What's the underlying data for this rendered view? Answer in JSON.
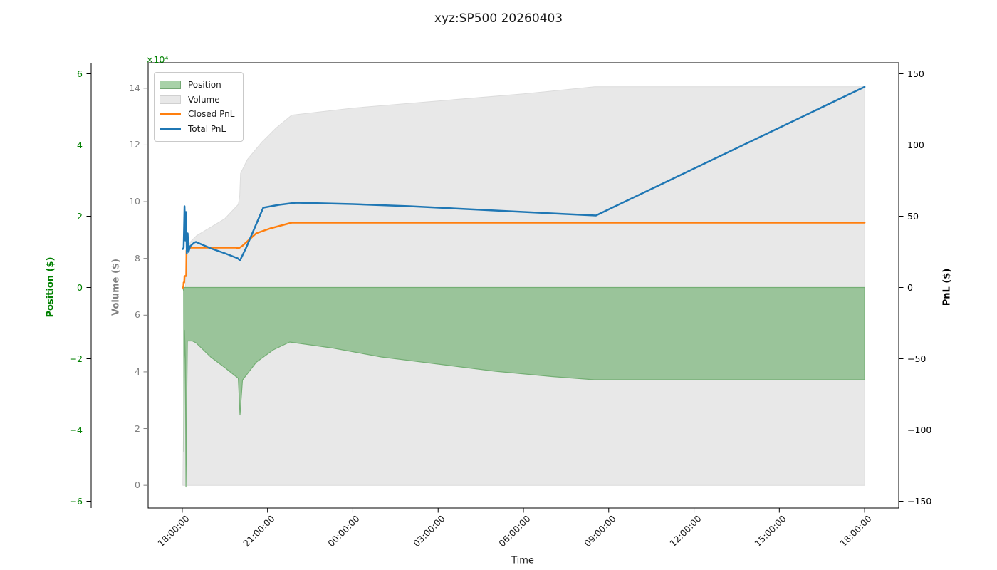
{
  "title": "xyz:SP500 20260403",
  "legend": {
    "items": [
      {
        "label": "Position",
        "type": "patch",
        "fill": "#a9d2a9",
        "edge": "#74a874"
      },
      {
        "label": "Volume",
        "type": "patch",
        "fill": "#e8e8e8",
        "edge": "#d0d0d0"
      },
      {
        "label": "Closed PnL",
        "type": "line",
        "color": "#ff7f0e"
      },
      {
        "label": "Total PnL",
        "type": "line",
        "color": "#1f77b4"
      }
    ]
  },
  "axes": {
    "x": {
      "label": "Time",
      "lim": [
        -1.2,
        25.2
      ],
      "ticks": [
        {
          "h": 0,
          "label": "18:00:00"
        },
        {
          "h": 3,
          "label": "21:00:00"
        },
        {
          "h": 6,
          "label": "00:00:00"
        },
        {
          "h": 9,
          "label": "03:00:00"
        },
        {
          "h": 12,
          "label": "06:00:00"
        },
        {
          "h": 15,
          "label": "09:00:00"
        },
        {
          "h": 18,
          "label": "12:00:00"
        },
        {
          "h": 21,
          "label": "15:00:00"
        },
        {
          "h": 24,
          "label": "18:00:00"
        }
      ]
    },
    "position": {
      "label": "Position ($)",
      "color": "#008000",
      "lim": [
        -6.19,
        6.31
      ],
      "ticks": [
        {
          "v": 6,
          "label": "6"
        },
        {
          "v": 4,
          "label": "4"
        },
        {
          "v": 2,
          "label": "2"
        },
        {
          "v": 0,
          "label": "0"
        },
        {
          "v": -2,
          "label": "−2"
        },
        {
          "v": -4,
          "label": "−4"
        },
        {
          "v": -6,
          "label": "−6"
        }
      ]
    },
    "volume": {
      "label": "Volume ($)",
      "color": "#808080",
      "lim": [
        -0.8,
        14.9
      ],
      "offset_text": "×10⁴",
      "ticks": [
        {
          "v": 14,
          "label": "14"
        },
        {
          "v": 12,
          "label": "12"
        },
        {
          "v": 10,
          "label": "10"
        },
        {
          "v": 8,
          "label": "8"
        },
        {
          "v": 6,
          "label": "6"
        },
        {
          "v": 4,
          "label": "4"
        },
        {
          "v": 2,
          "label": "2"
        },
        {
          "v": 0,
          "label": "0"
        }
      ]
    },
    "pnl": {
      "label": "PnL ($)",
      "color": "#000000",
      "lim": [
        -154.75,
        157.75
      ],
      "ticks": [
        {
          "v": 150,
          "label": "150"
        },
        {
          "v": 100,
          "label": "100"
        },
        {
          "v": 50,
          "label": "50"
        },
        {
          "v": 0,
          "label": "0"
        },
        {
          "v": -50,
          "label": "−50"
        },
        {
          "v": -100,
          "label": "−100"
        },
        {
          "v": -150,
          "label": "−150"
        }
      ]
    }
  },
  "chart_data": {
    "type": "mixed",
    "x_unit": "hours after 18:00 on 2026-04-03",
    "xlim": [
      -1.2,
      25.2
    ],
    "series": [
      {
        "name": "Volume",
        "kind": "area",
        "axis": "volume",
        "baseline": 0,
        "fill": "#e8e8e8",
        "edge": "#dcdcdc",
        "edge_width": 1,
        "points": [
          [
            0.02,
            0
          ],
          [
            0.05,
            2.5
          ],
          [
            0.08,
            5.0
          ],
          [
            0.12,
            7.3
          ],
          [
            0.15,
            8.3
          ],
          [
            0.3,
            8.6
          ],
          [
            0.5,
            8.8
          ],
          [
            1.0,
            9.1
          ],
          [
            1.5,
            9.4
          ],
          [
            1.97,
            9.9
          ],
          [
            2.02,
            10.2
          ],
          [
            2.05,
            11.0
          ],
          [
            2.3,
            11.5
          ],
          [
            2.8,
            12.1
          ],
          [
            3.3,
            12.6
          ],
          [
            3.85,
            13.05
          ],
          [
            6.0,
            13.3
          ],
          [
            9.0,
            13.55
          ],
          [
            12.0,
            13.8
          ],
          [
            14.5,
            14.05
          ],
          [
            24,
            14.05
          ]
        ]
      },
      {
        "name": "Position",
        "kind": "area",
        "axis": "position",
        "baseline": 0,
        "fill": "#9ac49a",
        "edge": "#74ae74",
        "edge_width": 1.2,
        "points": [
          [
            0.02,
            0
          ],
          [
            0.05,
            -0.1
          ],
          [
            0.06,
            -4.6
          ],
          [
            0.08,
            -1.2
          ],
          [
            0.11,
            -2.0
          ],
          [
            0.13,
            -5.6
          ],
          [
            0.16,
            -3.0
          ],
          [
            0.18,
            -1.5
          ],
          [
            0.35,
            -1.5
          ],
          [
            0.48,
            -1.55
          ],
          [
            1.0,
            -1.95
          ],
          [
            1.5,
            -2.25
          ],
          [
            1.97,
            -2.55
          ],
          [
            2.03,
            -3.58
          ],
          [
            2.12,
            -2.6
          ],
          [
            2.6,
            -2.1
          ],
          [
            3.2,
            -1.75
          ],
          [
            3.78,
            -1.53
          ],
          [
            5.3,
            -1.7
          ],
          [
            7.0,
            -1.95
          ],
          [
            9.0,
            -2.15
          ],
          [
            11.0,
            -2.35
          ],
          [
            13.0,
            -2.5
          ],
          [
            14.5,
            -2.59
          ],
          [
            24,
            -2.59
          ]
        ]
      },
      {
        "name": "Closed PnL",
        "kind": "line",
        "axis": "pnl",
        "color": "#ff7f0e",
        "width": 2.5,
        "points": [
          [
            0.02,
            0
          ],
          [
            0.04,
            0
          ],
          [
            0.05,
            3.5
          ],
          [
            0.07,
            3.5
          ],
          [
            0.08,
            8
          ],
          [
            0.14,
            8
          ],
          [
            0.15,
            26
          ],
          [
            0.22,
            26
          ],
          [
            0.25,
            28
          ],
          [
            1.9,
            28
          ],
          [
            1.98,
            27.5
          ],
          [
            2.1,
            29
          ],
          [
            2.6,
            38
          ],
          [
            3.1,
            41.5
          ],
          [
            3.85,
            45.5
          ],
          [
            24,
            45.5
          ]
        ]
      },
      {
        "name": "Total PnL",
        "kind": "line",
        "axis": "pnl",
        "color": "#1f77b4",
        "width": 2.5,
        "points": [
          [
            0.02,
            27
          ],
          [
            0.05,
            28
          ],
          [
            0.08,
            57
          ],
          [
            0.11,
            33
          ],
          [
            0.13,
            53
          ],
          [
            0.16,
            24
          ],
          [
            0.19,
            38
          ],
          [
            0.22,
            25
          ],
          [
            0.28,
            29
          ],
          [
            0.42,
            31.5
          ],
          [
            0.48,
            32
          ],
          [
            1.0,
            27.5
          ],
          [
            1.5,
            24
          ],
          [
            1.95,
            20.5
          ],
          [
            2.03,
            19
          ],
          [
            2.25,
            28
          ],
          [
            2.85,
            56
          ],
          [
            3.4,
            58
          ],
          [
            4.0,
            59.5
          ],
          [
            6.0,
            58.5
          ],
          [
            8.0,
            57
          ],
          [
            10.0,
            55
          ],
          [
            12.0,
            53
          ],
          [
            13.5,
            51.5
          ],
          [
            14.55,
            50.5
          ],
          [
            24,
            140.8
          ]
        ]
      }
    ]
  }
}
